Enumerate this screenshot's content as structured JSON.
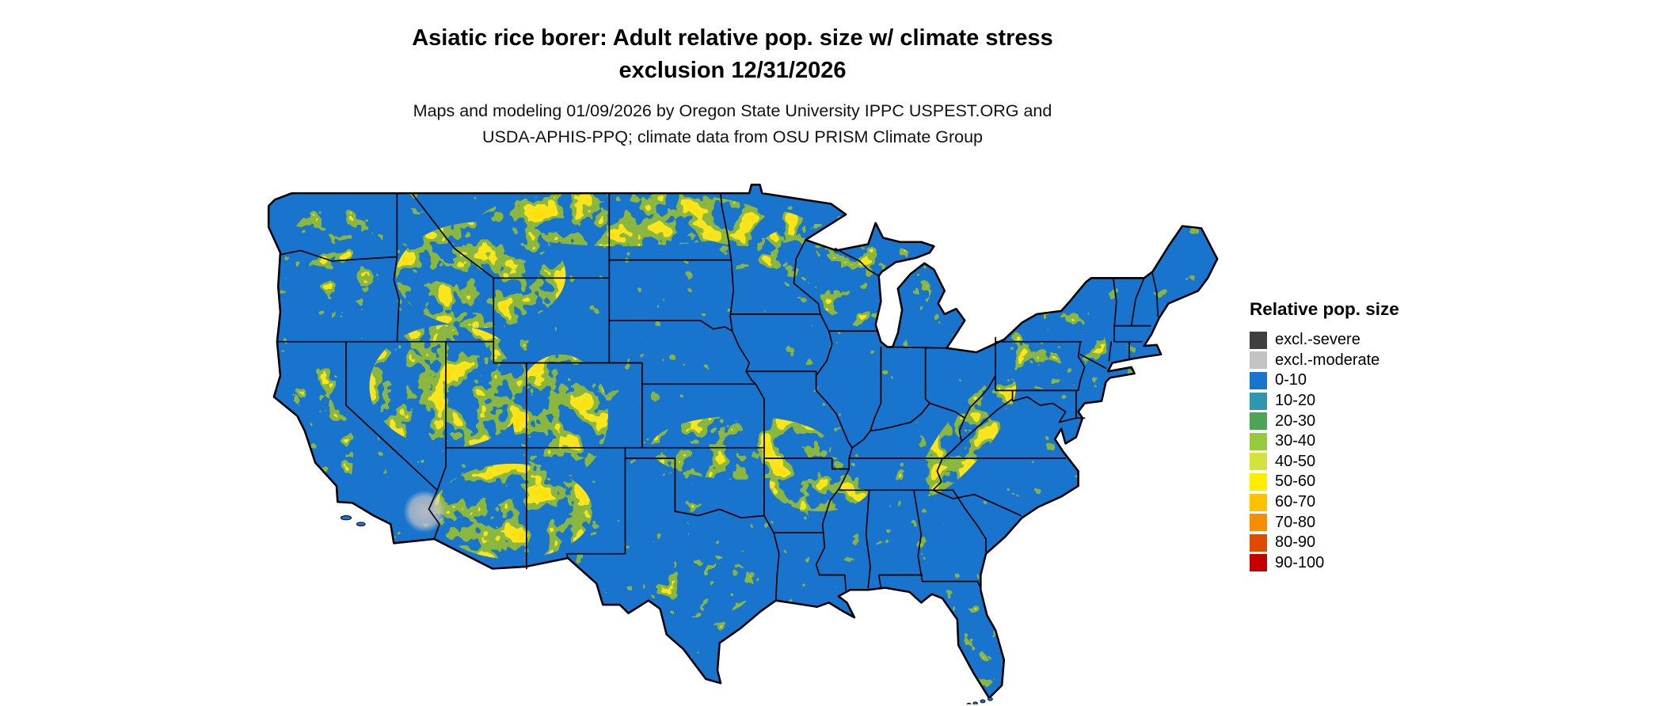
{
  "title": {
    "line1": "Asiatic rice borer: Adult relative pop. size w/ climate stress",
    "line2": "exclusion 12/31/2026"
  },
  "subtitle": {
    "line1": "Maps and modeling 01/09/2026 by Oregon State University IPPC USPEST.ORG and",
    "line2": "USDA-APHIS-PPQ; climate data from OSU PRISM Climate Group"
  },
  "legend": {
    "title": "Relative pop. size",
    "entries": [
      {
        "label": "excl.-severe",
        "color": "#3F3F3F"
      },
      {
        "label": "excl.-moderate",
        "color": "#C3C3C3"
      },
      {
        "label": "0-10",
        "color": "#1874CD"
      },
      {
        "label": "10-20",
        "color": "#2E96AE"
      },
      {
        "label": "20-30",
        "color": "#4DA457"
      },
      {
        "label": "30-40",
        "color": "#97C93D"
      },
      {
        "label": "40-50",
        "color": "#D4E23E"
      },
      {
        "label": "50-60",
        "color": "#FFEC00"
      },
      {
        "label": "60-70",
        "color": "#FFC100"
      },
      {
        "label": "70-80",
        "color": "#F78D05"
      },
      {
        "label": "80-90",
        "color": "#E04B00"
      },
      {
        "label": "90-100",
        "color": "#C40000"
      }
    ]
  },
  "map": {
    "region": "Continental United States",
    "colors": {
      "base": "#1874CD",
      "speckle_yellow": "#F5E32B",
      "speckle_green": "#8CB83F",
      "exclusion_moderate": "#BDBDBD",
      "exclusion_severe": "#3F3F3F",
      "border": "#000000",
      "background": "#FFFFFF"
    }
  }
}
